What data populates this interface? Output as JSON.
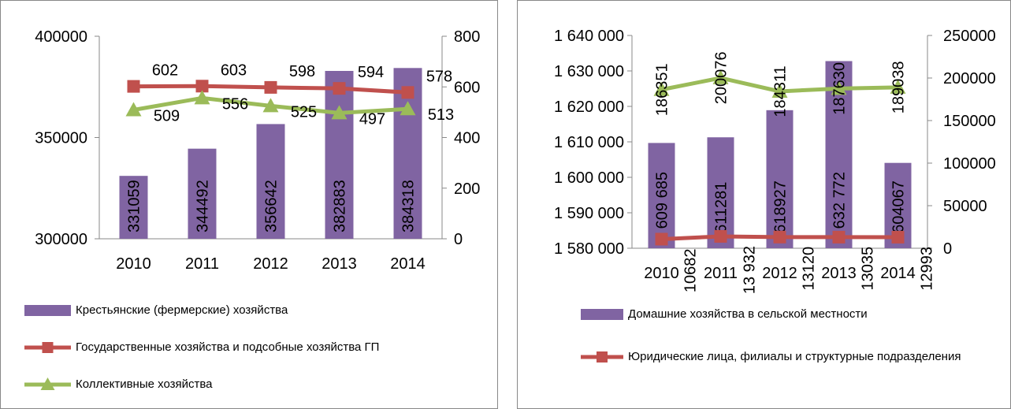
{
  "chart_data": [
    {
      "type": "bar",
      "categories": [
        "2010",
        "2011",
        "2012",
        "2013",
        "2014"
      ],
      "ylim": [
        300000,
        400000
      ],
      "yticks": [
        300000,
        350000,
        400000
      ],
      "y2lim": [
        0,
        800
      ],
      "y2ticks": [
        0,
        200,
        400,
        600,
        800
      ],
      "series": [
        {
          "name": "Крестьянские (фермерские) хозяйства",
          "type": "bar",
          "color": "#8064a2",
          "values": [
            331059,
            344492,
            356642,
            382883,
            384318
          ]
        },
        {
          "name": "Государственные хозяйства и подсобные хозяйства ГП",
          "type": "line",
          "axis": "y2",
          "color": "#c0504d",
          "marker": "square",
          "values": [
            602,
            603,
            598,
            594,
            578
          ]
        },
        {
          "name": "Коллективные хозяйства",
          "type": "line",
          "axis": "y2",
          "color": "#9bbb59",
          "marker": "triangle",
          "values": [
            509,
            556,
            525,
            497,
            513
          ]
        }
      ]
    },
    {
      "type": "bar",
      "categories": [
        "2010",
        "2011",
        "2012",
        "2013",
        "2014"
      ],
      "ylim": [
        1580000,
        1640000
      ],
      "yticks": [
        {
          "value": 1580000,
          "label": "1 580 000"
        },
        {
          "value": 1590000,
          "label": "1 590 000"
        },
        {
          "value": 1600000,
          "label": "1 600 000"
        },
        {
          "value": 1610000,
          "label": "1 610 000"
        },
        {
          "value": 1620000,
          "label": "1 620 000"
        },
        {
          "value": 1630000,
          "label": "1 630 000"
        },
        {
          "value": 1640000,
          "label": "1 640 000"
        }
      ],
      "y2lim": [
        0,
        250000
      ],
      "y2ticks": [
        0,
        50000,
        100000,
        150000,
        200000,
        250000
      ],
      "series": [
        {
          "name": "Домашние хозяйства в сельской местности",
          "type": "bar",
          "color": "#8064a2",
          "values": [
            1609685,
            1611281,
            1618927,
            1632772,
            1604067
          ],
          "value_labels": [
            "1 609 685",
            "1611281",
            "1618927",
            "1 632 772",
            "1604067"
          ]
        },
        {
          "name": "Юридические лица, филиалы и структурные подразделения",
          "type": "line",
          "axis": "y2",
          "color": "#c0504d",
          "marker": "square",
          "values": [
            10682,
            13932,
            13120,
            13035,
            12993
          ],
          "value_labels": [
            "10682",
            "13 932",
            "13120",
            "13035",
            "12993"
          ]
        },
        {
          "type": "line",
          "axis": "y2",
          "color": "#9bbb59",
          "marker": "triangle",
          "values": [
            186351,
            200076,
            184311,
            187630,
            189038
          ]
        }
      ]
    }
  ]
}
